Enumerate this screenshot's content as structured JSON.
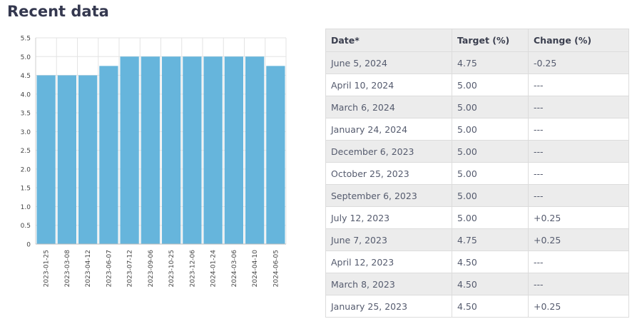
{
  "page": {
    "title": "Recent data"
  },
  "chart_data": {
    "type": "bar",
    "categories": [
      "2023-01-25",
      "2023-03-08",
      "2023-04-12",
      "2023-06-07",
      "2023-07-12",
      "2023-09-06",
      "2023-10-25",
      "2023-12-06",
      "2024-01-24",
      "2024-03-06",
      "2024-04-10",
      "2024-06-05"
    ],
    "values": [
      4.5,
      4.5,
      4.5,
      4.75,
      5.0,
      5.0,
      5.0,
      5.0,
      5.0,
      5.0,
      5.0,
      4.75
    ],
    "yticks": [
      "0",
      "0.5",
      "1.0",
      "1.5",
      "2.0",
      "2.5",
      "3.0",
      "3.5",
      "4.0",
      "4.5",
      "5.0",
      "5.5"
    ],
    "ylim": [
      0,
      5.5
    ],
    "grid": true,
    "bar_color": "#66b5dc"
  },
  "table": {
    "headers": {
      "date": "Date*",
      "target": "Target (%)",
      "change": "Change (%)"
    },
    "rows": [
      {
        "date": "June 5, 2024",
        "target": "4.75",
        "change": "-0.25"
      },
      {
        "date": "April 10, 2024",
        "target": "5.00",
        "change": "---"
      },
      {
        "date": "March 6, 2024",
        "target": "5.00",
        "change": "---"
      },
      {
        "date": "January 24, 2024",
        "target": "5.00",
        "change": "---"
      },
      {
        "date": "December 6, 2023",
        "target": "5.00",
        "change": "---"
      },
      {
        "date": "October 25, 2023",
        "target": "5.00",
        "change": "---"
      },
      {
        "date": "September 6, 2023",
        "target": "5.00",
        "change": "---"
      },
      {
        "date": "July 12, 2023",
        "target": "5.00",
        "change": "+0.25"
      },
      {
        "date": "June 7, 2023",
        "target": "4.75",
        "change": "+0.25"
      },
      {
        "date": "April 12, 2023",
        "target": "4.50",
        "change": "---"
      },
      {
        "date": "March 8, 2023",
        "target": "4.50",
        "change": "---"
      },
      {
        "date": "January 25, 2023",
        "target": "4.50",
        "change": "+0.25"
      }
    ]
  }
}
